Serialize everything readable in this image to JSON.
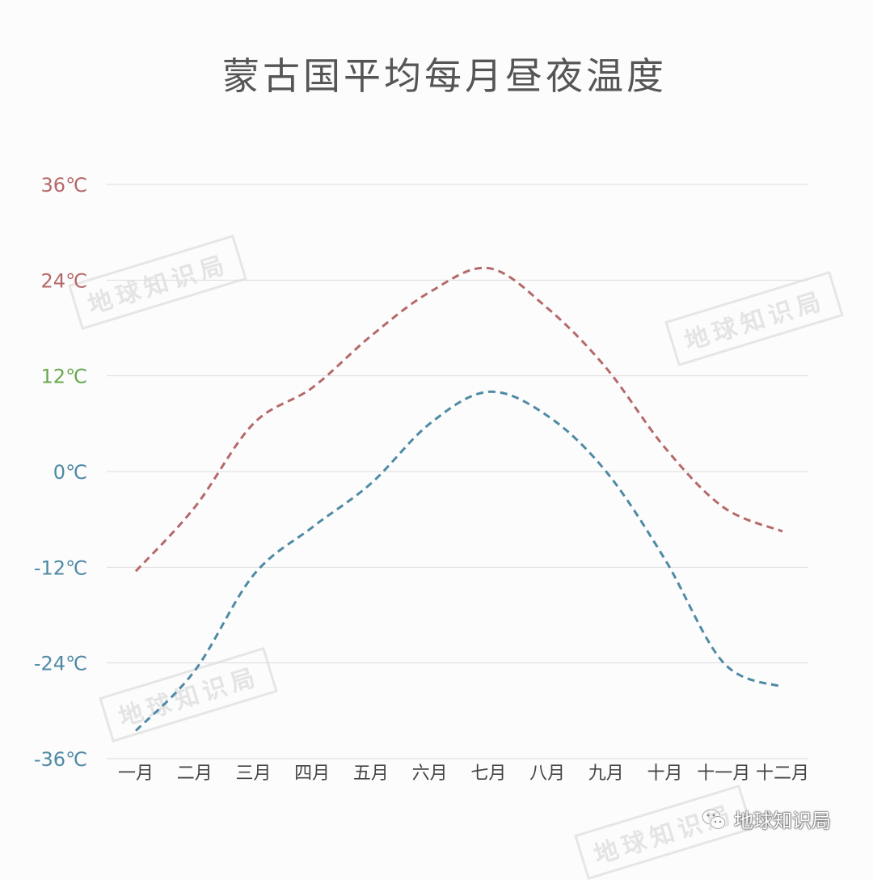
{
  "chart_data": {
    "type": "line",
    "title": "蒙古国平均每月昼夜温度",
    "categories": [
      "一月",
      "二月",
      "三月",
      "四月",
      "五月",
      "六月",
      "七月",
      "八月",
      "九月",
      "十月",
      "十一月",
      "十二月"
    ],
    "ylim": [
      -36,
      36
    ],
    "yticks": [
      {
        "label": "36℃",
        "value": 36,
        "color": "#b5696a"
      },
      {
        "label": "24℃",
        "value": 24,
        "color": "#b5696a"
      },
      {
        "label": "12℃",
        "value": 12,
        "color": "#6aa84f"
      },
      {
        "label": "0℃",
        "value": 0,
        "color": "#4f8aa5"
      },
      {
        "label": "-12℃",
        "value": -12,
        "color": "#4f8aa5"
      },
      {
        "label": "-24℃",
        "value": -24,
        "color": "#4f8aa5"
      },
      {
        "label": "-36℃",
        "value": -36,
        "color": "#4f8aa5"
      }
    ],
    "grid": true,
    "legend": "none",
    "series": [
      {
        "color": "#b5696a",
        "style": "dashed",
        "values": [
          -12.5,
          -4.5,
          6,
          10.5,
          17,
          22.5,
          25.5,
          20.5,
          13,
          3,
          -4.5,
          -7.5
        ]
      },
      {
        "color": "#4f8aa5",
        "style": "dashed",
        "values": [
          -32.5,
          -25,
          -13,
          -7,
          -1.5,
          6,
          10,
          7,
          0,
          -11,
          -24,
          -27
        ]
      }
    ]
  },
  "watermarks": [
    "地球知识局",
    "地球知识局",
    "地球知识局",
    "地球知识局"
  ],
  "brand": {
    "label": "地球知识局",
    "icon": "wechat-icon"
  }
}
